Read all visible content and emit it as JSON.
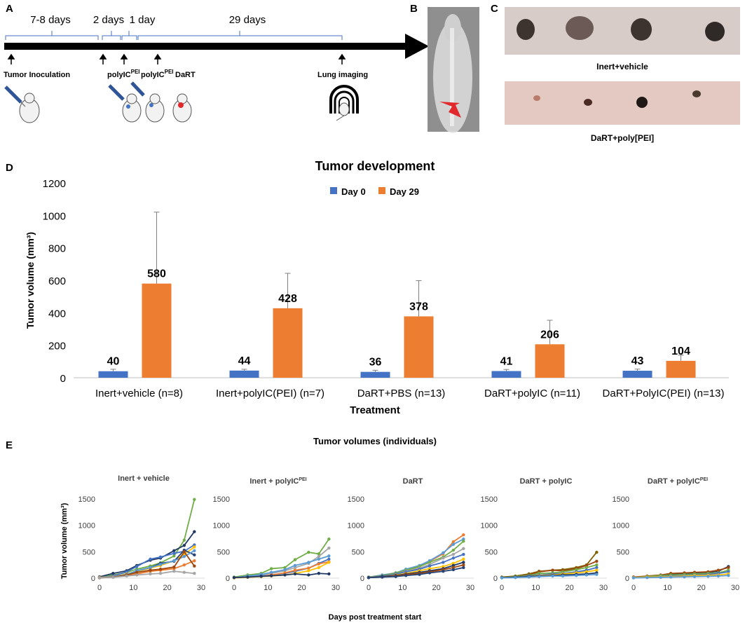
{
  "panels": {
    "A": "A",
    "B": "B",
    "C": "C",
    "D": "D",
    "E": "E"
  },
  "timeline": {
    "durations": [
      "7-8 days",
      "2 days",
      "1 day",
      "29 days"
    ],
    "events": {
      "inoculation": "Tumor Inoculation",
      "polyic1": "polyIC",
      "polyic1_sup": "PEI",
      "polyic2": "polyIC",
      "polyic2_sup": "PEI",
      "dart": "DaRT",
      "imaging": "Lung imaging"
    }
  },
  "photos": {
    "top_label": "Inert+vehicle",
    "bottom_label": "DaRT+poly[PEI]"
  },
  "colors": {
    "day0": "#4472C4",
    "day29": "#ED7D31",
    "axis": "#BFBFBF"
  },
  "chart_data": [
    {
      "type": "bar",
      "title": "Tumor development",
      "xlabel": "Treatment",
      "ylabel": "Tumor volume (mm³)",
      "ylim": [
        0,
        1200
      ],
      "yticks": [
        "0",
        "200",
        "400",
        "600",
        "800",
        "1000",
        "1200"
      ],
      "legend_position": "top-center",
      "categories": [
        "Inert+vehicle (n=8)",
        "Inert+polyIC(PEI) (n=7)",
        "DaRT+PBS (n=13)",
        "DaRT+polyIC (n=11)",
        "DaRT+PolyIC(PEI) (n=13)"
      ],
      "series": [
        {
          "name": "Day 0",
          "values": [
            40,
            44,
            36,
            41,
            43
          ],
          "errors": [
            12,
            8,
            10,
            10,
            10
          ]
        },
        {
          "name": "Day 29",
          "values": [
            580,
            428,
            378,
            206,
            104
          ],
          "errors": [
            440,
            215,
            220,
            148,
            35
          ]
        }
      ],
      "data_labels": {
        "Day 0": [
          "40",
          "44",
          "36",
          "41",
          "43"
        ],
        "Day 29": [
          "580",
          "428",
          "378",
          "206",
          "104"
        ]
      }
    },
    {
      "type": "line",
      "title": "Tumor volumes (individuals)",
      "xlabel": "Days post treatment start",
      "ylabel": "Tumor volume (mm³)",
      "xlim": [
        0,
        30
      ],
      "ylim": [
        0,
        1500
      ],
      "xticks": [
        "0",
        "10",
        "20",
        "30"
      ],
      "yticks": [
        "0",
        "500",
        "1000",
        "1500"
      ],
      "x": [
        0,
        4,
        8,
        11,
        15,
        18,
        22,
        25,
        28
      ],
      "panels": [
        {
          "title": "Inert + vehicle",
          "title_sup": "",
          "series": [
            {
              "color": "#70AD47",
              "values": [
                20,
                60,
                110,
                170,
                230,
                290,
                420,
                720,
                1490
              ]
            },
            {
              "color": "#203864",
              "values": [
                25,
                90,
                140,
                240,
                340,
                380,
                520,
                620,
                880
              ]
            },
            {
              "color": "#4472C4",
              "values": [
                10,
                40,
                120,
                220,
                360,
                400,
                470,
                510,
                630
              ]
            },
            {
              "color": "#FFC000",
              "values": [
                15,
                30,
                80,
                130,
                190,
                240,
                330,
                450,
                590
              ]
            },
            {
              "color": "#264478",
              "values": [
                10,
                20,
                60,
                140,
                200,
                280,
                320,
                530,
                440
              ]
            },
            {
              "color": "#5B9BD5",
              "values": [
                12,
                30,
                70,
                140,
                200,
                260,
                330,
                410,
                520
              ]
            },
            {
              "color": "#ED7D31",
              "values": [
                10,
                20,
                50,
                80,
                130,
                150,
                180,
                250,
                330
              ]
            },
            {
              "color": "#9E480E",
              "values": [
                5,
                20,
                60,
                110,
                150,
                170,
                210,
                500,
                230
              ]
            },
            {
              "color": "#A5A5A5",
              "values": [
                8,
                15,
                40,
                60,
                80,
                90,
                130,
                110,
                90
              ]
            }
          ]
        },
        {
          "title": "Inert + polyIC",
          "title_sup": "PEI",
          "series": [
            {
              "color": "#70AD47",
              "values": [
                20,
                60,
                90,
                180,
                200,
                350,
                490,
                460,
                740
              ]
            },
            {
              "color": "#A5A5A5",
              "values": [
                10,
                30,
                60,
                90,
                140,
                200,
                280,
                410,
                570
              ]
            },
            {
              "color": "#5B9BD5",
              "values": [
                10,
                40,
                70,
                110,
                160,
                240,
                300,
                360,
                420
              ]
            },
            {
              "color": "#4472C4",
              "values": [
                10,
                20,
                40,
                60,
                90,
                130,
                190,
                280,
                360
              ]
            },
            {
              "color": "#ED7D31",
              "values": [
                10,
                20,
                30,
                60,
                100,
                150,
                190,
                270,
                310
              ]
            },
            {
              "color": "#FFC000",
              "values": [
                5,
                15,
                30,
                40,
                60,
                90,
                140,
                200,
                300
              ]
            },
            {
              "color": "#203864",
              "values": [
                10,
                20,
                35,
                45,
                60,
                80,
                60,
                90,
                80
              ]
            }
          ]
        },
        {
          "title": "DaRT",
          "title_sup": "",
          "series": [
            {
              "color": "#ED7D31",
              "values": [
                20,
                50,
                90,
                140,
                220,
                320,
                460,
                690,
                820
              ]
            },
            {
              "color": "#5B9BD5",
              "values": [
                20,
                60,
                100,
                170,
                240,
                330,
                480,
                640,
                740
              ]
            },
            {
              "color": "#70AD47",
              "values": [
                20,
                50,
                100,
                150,
                220,
                300,
                400,
                530,
                700
              ]
            },
            {
              "color": "#A5A5A5",
              "values": [
                15,
                40,
                80,
                130,
                190,
                260,
                380,
                450,
                560
              ]
            },
            {
              "color": "#4472C4",
              "values": [
                10,
                40,
                80,
                120,
                170,
                230,
                300,
                380,
                450
              ]
            },
            {
              "color": "#FFC000",
              "values": [
                10,
                30,
                60,
                90,
                140,
                180,
                220,
                280,
                360
              ]
            },
            {
              "color": "#203864",
              "values": [
                10,
                30,
                50,
                80,
                110,
                140,
                180,
                240,
                300
              ]
            },
            {
              "color": "#9E480E",
              "values": [
                10,
                20,
                40,
                70,
                90,
                120,
                160,
                200,
                250
              ]
            },
            {
              "color": "#264478",
              "values": [
                10,
                20,
                30,
                50,
                70,
                100,
                130,
                160,
                200
              ]
            }
          ]
        },
        {
          "title": "DaRT + polyIC",
          "title_sup": "",
          "series": [
            {
              "color": "#7F6000",
              "values": [
                20,
                40,
                80,
                130,
                150,
                160,
                200,
                250,
                490
              ]
            },
            {
              "color": "#9E480E",
              "values": [
                10,
                30,
                60,
                120,
                150,
                140,
                180,
                240,
                320
              ]
            },
            {
              "color": "#70AD47",
              "values": [
                10,
                30,
                50,
                90,
                100,
                120,
                160,
                200,
                250
              ]
            },
            {
              "color": "#4472C4",
              "values": [
                10,
                20,
                40,
                60,
                80,
                90,
                120,
                150,
                200
              ]
            },
            {
              "color": "#FFC000",
              "values": [
                10,
                20,
                30,
                50,
                60,
                80,
                100,
                120,
                150
              ]
            },
            {
              "color": "#203864",
              "values": [
                10,
                20,
                30,
                40,
                50,
                60,
                70,
                80,
                100
              ]
            },
            {
              "color": "#5B9BD5",
              "values": [
                5,
                10,
                20,
                30,
                40,
                40,
                50,
                60,
                70
              ]
            }
          ]
        },
        {
          "title": "DaRT + polyIC",
          "title_sup": "PEI",
          "series": [
            {
              "color": "#203864",
              "values": [
                20,
                30,
                50,
                80,
                90,
                100,
                110,
                130,
                220
              ]
            },
            {
              "color": "#9E480E",
              "values": [
                20,
                40,
                60,
                90,
                100,
                110,
                120,
                150,
                200
              ]
            },
            {
              "color": "#70AD47",
              "values": [
                10,
                30,
                50,
                60,
                70,
                80,
                90,
                100,
                150
              ]
            },
            {
              "color": "#4472C4",
              "values": [
                10,
                20,
                30,
                40,
                50,
                60,
                70,
                90,
                120
              ]
            },
            {
              "color": "#FFC000",
              "values": [
                10,
                20,
                25,
                30,
                40,
                50,
                55,
                60,
                80
              ]
            },
            {
              "color": "#5B9BD5",
              "values": [
                5,
                10,
                15,
                20,
                25,
                30,
                35,
                40,
                50
              ]
            }
          ]
        }
      ]
    }
  ]
}
